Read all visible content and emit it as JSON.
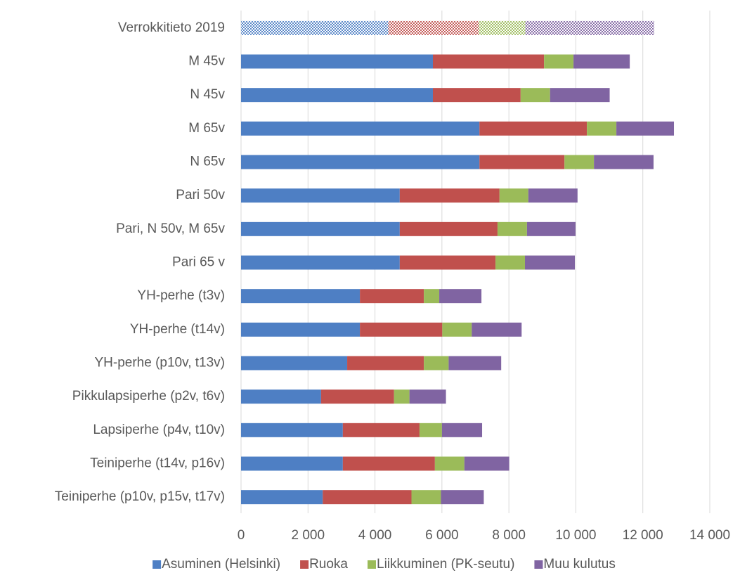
{
  "chart_data": {
    "type": "stacked-barh",
    "categories": [
      "Verrokkitieto 2019",
      "M 45v",
      "N 45v",
      "M 65v",
      "N 65v",
      "Pari 50v",
      "Pari, N 50v, M 65v",
      "Pari 65 v",
      "YH-perhe (t3v)",
      "YH-perhe (t14v)",
      "YH-perhe (p10v, t13v)",
      "Pikkulapsiperhe (p2v, t6v)",
      "Lapsiperhe (p4v, t10v)",
      "Teiniperhe  (t14v, p16v)",
      "Teiniperhe (p10v, p15v, t17v)"
    ],
    "series": [
      {
        "name": "Asuminen (Helsinki)",
        "color": "#4e7fc4",
        "values": [
          4400,
          5730,
          5730,
          7120,
          7120,
          4740,
          4740,
          4740,
          3550,
          3550,
          3170,
          2390,
          3040,
          3040,
          2440
        ]
      },
      {
        "name": "Ruoka",
        "color": "#c0504d",
        "values": [
          2700,
          3320,
          2620,
          3210,
          2540,
          2980,
          2920,
          2860,
          1910,
          2460,
          2290,
          2180,
          2290,
          2750,
          2650
        ]
      },
      {
        "name": "Liikkuminen (PK-seutu)",
        "color": "#9bbb59",
        "values": [
          1390,
          880,
          880,
          880,
          880,
          860,
          880,
          880,
          460,
          880,
          740,
          460,
          670,
          880,
          880
        ]
      },
      {
        "name": "Muu kulutus",
        "color": "#8064a2",
        "values": [
          3850,
          1680,
          1780,
          1720,
          1780,
          1470,
          1450,
          1490,
          1260,
          1490,
          1570,
          1090,
          1200,
          1340,
          1280
        ]
      }
    ],
    "patterned": [
      0
    ],
    "xlim": [
      0,
      14000
    ],
    "xticks": [
      0,
      {
        "value": 2000,
        "label": "2 000"
      },
      {
        "value": 4000,
        "label": "4 000"
      },
      {
        "value": 6000,
        "label": "6 000"
      },
      {
        "value": 8000,
        "label": "8 000"
      },
      {
        "value": 10000,
        "label": "10 000"
      },
      {
        "value": 12000,
        "label": "12 000"
      },
      {
        "value": 14000,
        "label": "14 000"
      }
    ],
    "grid": true,
    "legend": "bottom"
  }
}
